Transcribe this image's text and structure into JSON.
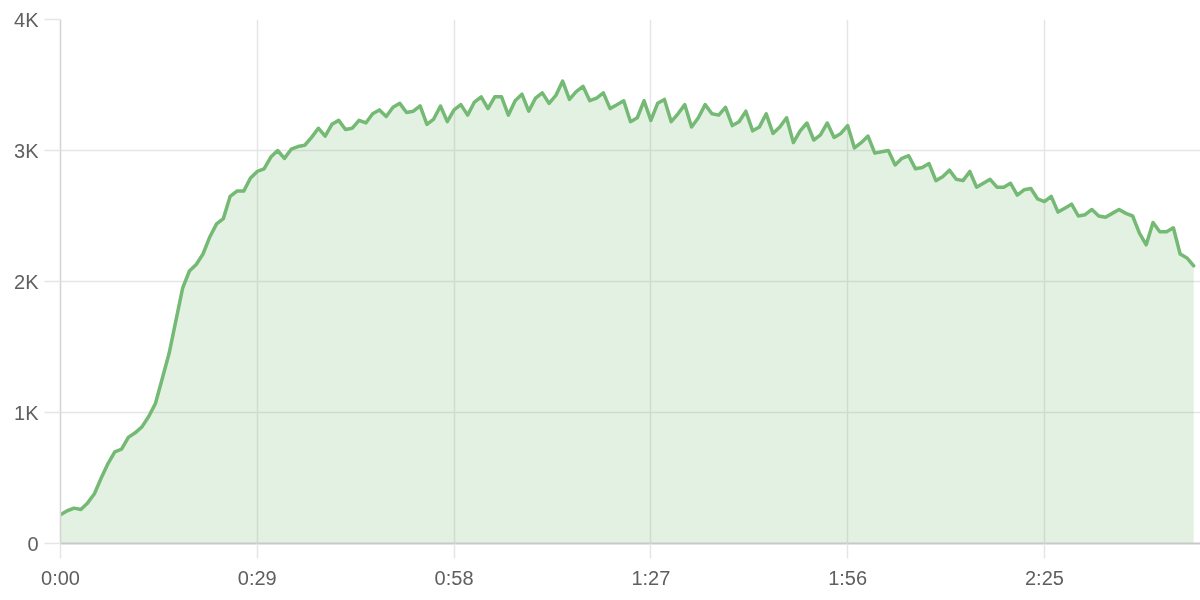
{
  "chart_data": {
    "type": "area",
    "color": "#74b974",
    "grid": true,
    "xlim": [
      0,
      168
    ],
    "ylim": [
      0,
      4000
    ],
    "xticks": [
      {
        "value": 0,
        "label": "0:00"
      },
      {
        "value": 29,
        "label": "0:29"
      },
      {
        "value": 58,
        "label": "0:58"
      },
      {
        "value": 87,
        "label": "1:27"
      },
      {
        "value": 116,
        "label": "1:56"
      },
      {
        "value": 145,
        "label": "2:25"
      }
    ],
    "yticks": [
      0,
      {
        "value": 1000,
        "label": "1K"
      },
      {
        "value": 2000,
        "label": "2K"
      },
      {
        "value": 3000,
        "label": "3K"
      },
      {
        "value": 4000,
        "label": "4K"
      }
    ],
    "x": [
      0,
      1,
      2,
      3,
      4,
      5,
      6,
      7,
      8,
      9,
      10,
      11,
      12,
      13,
      14,
      15,
      16,
      17,
      18,
      19,
      20,
      21,
      22,
      23,
      24,
      25,
      26,
      27,
      28,
      29,
      30,
      31,
      32,
      33,
      34,
      35,
      36,
      37,
      38,
      39,
      40,
      41,
      42,
      43,
      44,
      45,
      46,
      47,
      48,
      49,
      50,
      51,
      52,
      53,
      54,
      55,
      56,
      57,
      58,
      59,
      60,
      61,
      62,
      63,
      64,
      65,
      66,
      67,
      68,
      69,
      70,
      71,
      72,
      73,
      74,
      75,
      76,
      77,
      78,
      79,
      80,
      81,
      82,
      83,
      84,
      85,
      86,
      87,
      88,
      89,
      90,
      91,
      92,
      93,
      94,
      95,
      96,
      97,
      98,
      99,
      100,
      101,
      102,
      103,
      104,
      105,
      106,
      107,
      108,
      109,
      110,
      111,
      112,
      113,
      114,
      115,
      116,
      117,
      118,
      119,
      120,
      121,
      122,
      123,
      124,
      125,
      126,
      127,
      128,
      129,
      130,
      131,
      132,
      133,
      134,
      135,
      136,
      137,
      138,
      139,
      140,
      141,
      142,
      143,
      144,
      145,
      146,
      147,
      148,
      149,
      150,
      151,
      152,
      153,
      154,
      155,
      156,
      157,
      158,
      159,
      160,
      161,
      162,
      163,
      164,
      165,
      166,
      167
    ],
    "values": [
      220,
      250,
      270,
      260,
      310,
      380,
      500,
      610,
      700,
      720,
      810,
      845,
      890,
      970,
      1070,
      1260,
      1450,
      1700,
      1950,
      2080,
      2130,
      2210,
      2340,
      2440,
      2480,
      2650,
      2690,
      2690,
      2790,
      2840,
      2860,
      2950,
      3000,
      2940,
      3010,
      3030,
      3040,
      3100,
      3170,
      3110,
      3200,
      3230,
      3160,
      3170,
      3230,
      3210,
      3280,
      3310,
      3260,
      3330,
      3360,
      3290,
      3300,
      3340,
      3200,
      3240,
      3340,
      3220,
      3310,
      3350,
      3270,
      3370,
      3410,
      3320,
      3410,
      3410,
      3270,
      3380,
      3430,
      3300,
      3400,
      3440,
      3360,
      3420,
      3530,
      3390,
      3450,
      3490,
      3380,
      3400,
      3440,
      3320,
      3350,
      3380,
      3220,
      3250,
      3380,
      3230,
      3360,
      3390,
      3220,
      3280,
      3350,
      3180,
      3250,
      3350,
      3280,
      3270,
      3330,
      3190,
      3220,
      3300,
      3150,
      3180,
      3280,
      3130,
      3180,
      3250,
      3060,
      3150,
      3210,
      3080,
      3120,
      3210,
      3100,
      3130,
      3190,
      3020,
      3060,
      3110,
      2980,
      2990,
      3000,
      2890,
      2940,
      2960,
      2860,
      2870,
      2900,
      2770,
      2800,
      2850,
      2780,
      2770,
      2840,
      2720,
      2750,
      2780,
      2720,
      2720,
      2750,
      2660,
      2700,
      2710,
      2630,
      2610,
      2650,
      2530,
      2560,
      2590,
      2500,
      2510,
      2550,
      2500,
      2490,
      2520,
      2550,
      2520,
      2500,
      2370,
      2280,
      2450,
      2380,
      2380,
      2410,
      2210,
      2180,
      2120
    ]
  }
}
